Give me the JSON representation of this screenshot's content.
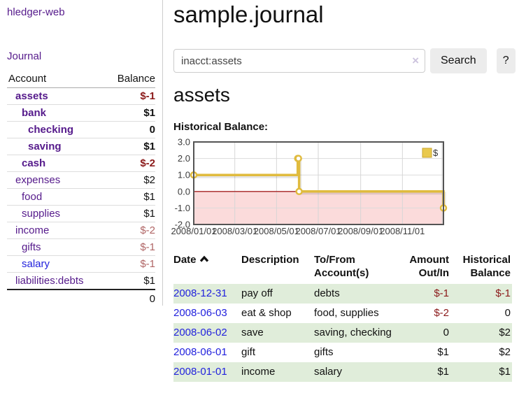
{
  "colors": {
    "purple_link": "#551a8b",
    "blue_link": "#2222dd",
    "negative": "#8b1a1a",
    "negative_muted": "#b06565",
    "stripe_green": "#e0edda",
    "chart_line_gold": "#e0bb3e",
    "chart_negative_fill": "#fbdbdb",
    "chart_zero_line": "#a42222"
  },
  "sidebar": {
    "brand": "hledger-web",
    "journal_link": "Journal",
    "table": {
      "account_header": "Account",
      "balance_header": "Balance",
      "accounts": [
        {
          "name": "assets",
          "depth": 1,
          "bold": true,
          "link_color": "purple",
          "balance": "$-1",
          "balance_class": "neg"
        },
        {
          "name": "bank",
          "depth": 2,
          "bold": true,
          "link_color": "purple",
          "balance": "$1",
          "balance_class": ""
        },
        {
          "name": "checking",
          "depth": 3,
          "bold": true,
          "link_color": "purple",
          "balance": "0",
          "balance_class": ""
        },
        {
          "name": "saving",
          "depth": 3,
          "bold": true,
          "link_color": "purple",
          "balance": "$1",
          "balance_class": ""
        },
        {
          "name": "cash",
          "depth": 2,
          "bold": true,
          "link_color": "purple",
          "balance": "$-2",
          "balance_class": "neg"
        },
        {
          "name": "expenses",
          "depth": 1,
          "bold": false,
          "link_color": "purple",
          "balance": "$2",
          "balance_class": ""
        },
        {
          "name": "food",
          "depth": 2,
          "bold": false,
          "link_color": "purple",
          "balance": "$1",
          "balance_class": ""
        },
        {
          "name": "supplies",
          "depth": 2,
          "bold": false,
          "link_color": "purple",
          "balance": "$1",
          "balance_class": ""
        },
        {
          "name": "income",
          "depth": 1,
          "bold": false,
          "link_color": "purple",
          "balance": "$-2",
          "balance_class": "neg-muted"
        },
        {
          "name": "gifts",
          "depth": 2,
          "bold": false,
          "link_color": "purple",
          "balance": "$-1",
          "balance_class": "neg-muted"
        },
        {
          "name": "salary",
          "depth": 2,
          "bold": false,
          "link_color": "blue",
          "balance": "$-1",
          "balance_class": "neg-muted"
        },
        {
          "name": "liabilities:debts",
          "depth": 1,
          "bold": false,
          "link_color": "purple",
          "balance": "$1",
          "balance_class": ""
        }
      ],
      "total": "0"
    }
  },
  "main": {
    "title": "sample.journal",
    "search": {
      "value": "inacct:assets",
      "clear_icon": "×",
      "search_button": "Search",
      "help_button": "?"
    },
    "account_heading": "assets",
    "chart_label": "Historical Balance:"
  },
  "chart_data": {
    "type": "line",
    "style": "step-after",
    "title": "Historical Balance",
    "series": [
      {
        "name": "$",
        "color": "#e0bb3e",
        "points": [
          {
            "date": "2008-01-01",
            "value": 1
          },
          {
            "date": "2008-06-01",
            "value": 2
          },
          {
            "date": "2008-06-02",
            "value": 2
          },
          {
            "date": "2008-06-03",
            "value": 0
          },
          {
            "date": "2008-12-31",
            "value": -1
          }
        ]
      }
    ],
    "ylim": [
      -2,
      3
    ],
    "yticks": [
      "3.0",
      "2.0",
      "1.0",
      "0.0",
      "-1.0",
      "-2.0"
    ],
    "ytick_values": [
      3,
      2,
      1,
      0,
      -1,
      -2
    ],
    "xticks": [
      "2008/01/01",
      "2008/03/01",
      "2008/05/01",
      "2008/07/01",
      "2008/09/01",
      "2008/11/01"
    ],
    "x_start": "2008-01-01",
    "x_span_days": 365,
    "grid": true,
    "legend_position": "top-right",
    "legend_label": "$",
    "negative_region_fill": "#fbdbdb",
    "zero_line_color": "#a42222"
  },
  "register": {
    "headers": [
      "Date",
      "Description",
      "To/From Account(s)",
      "Amount Out/In",
      "Historical Balance"
    ],
    "sort_icon": "chevron-up",
    "rows": [
      {
        "date": "2008-12-31",
        "description": "pay off",
        "accounts": "debts",
        "amount": "$-1",
        "amount_class": "neg",
        "balance": "$-1",
        "balance_class": "neg"
      },
      {
        "date": "2008-06-03",
        "description": "eat & shop",
        "accounts": "food, supplies",
        "amount": "$-2",
        "amount_class": "neg",
        "balance": "0",
        "balance_class": ""
      },
      {
        "date": "2008-06-02",
        "description": "save",
        "accounts": "saving, checking",
        "amount": "0",
        "amount_class": "",
        "balance": "$2",
        "balance_class": ""
      },
      {
        "date": "2008-06-01",
        "description": "gift",
        "accounts": "gifts",
        "amount": "$1",
        "amount_class": "",
        "balance": "$2",
        "balance_class": ""
      },
      {
        "date": "2008-01-01",
        "description": "income",
        "accounts": "salary",
        "amount": "$1",
        "amount_class": "",
        "balance": "$1",
        "balance_class": ""
      }
    ]
  }
}
